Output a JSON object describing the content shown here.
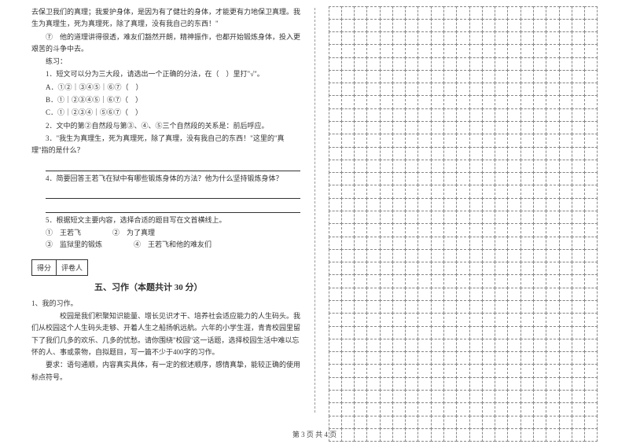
{
  "left": {
    "passage": [
      "去保卫我们的真理；我爱护身体，是因为有了健壮的身体，才能更有力地保卫真理。我生为真理生，死为真理死，除了真理，没有我自己的东西！\"",
      "⑦　他的道理讲得很透，难友们豁然开朗，精神振作，也都开始锻炼身体，投入更艰苦的斗争中去。"
    ],
    "exercise_label": "练习：",
    "q1": "1．短文可以分为三大段，请选出一个正确的分法，在（　）里打\"√\"。",
    "q1_opts": [
      "A．①②｜③④⑤｜⑥⑦（　）",
      "B．①｜②③④⑤｜⑥⑦（　）",
      "C．①｜②③④｜⑤⑥⑦（　）"
    ],
    "q2": "2．文中的第②自然段与第③、④、⑤三个自然段的关系是：前后呼应。",
    "q3": "3．\"我生为真理生，死为真理死，除了真理，没有我自己的东西！\"这里的\"真理\"指的是什么？",
    "q4": "4．简要回答王若飞在狱中有哪些锻炼身体的方法？他为什么坚持锻炼身体？",
    "q5": "5．根据短文主要内容，选择合适的题目写在文首横线上。",
    "q5_opts_row1": {
      "a": "①　王若飞",
      "b": "②　为了真理"
    },
    "q5_opts_row2": {
      "a": "③　监狱里的锻炼",
      "b": "④　王若飞和他的难友们"
    },
    "score_cells": [
      "得分",
      "评卷人"
    ],
    "section_title": "五、习作（本题共计 30 分）",
    "essay_num": "1、我的习作。",
    "essay_body": "　　校园是我们积聚知识能量、增长见识才干、培养社会适应能力的人生码头。我们从校园这个人生码头走够、开着人生之船扬帆远航。六年的小学生涯，青青校园里留下了我们几多的欢乐、几多的忧愁。请你围绕\"校园\"这一话题，选择校园生活中难以忘怀的人、事或景物，自拟题目，写一篇不少于400字的习作。",
    "essay_req": "要求：语句通顺，内容真实具体，有一定的叙述顺序，感情真挚，能较正确的使用标点符号。"
  },
  "grid": {
    "rows": 34,
    "cols": 21
  },
  "footer": "第 3 页  共 4 页"
}
